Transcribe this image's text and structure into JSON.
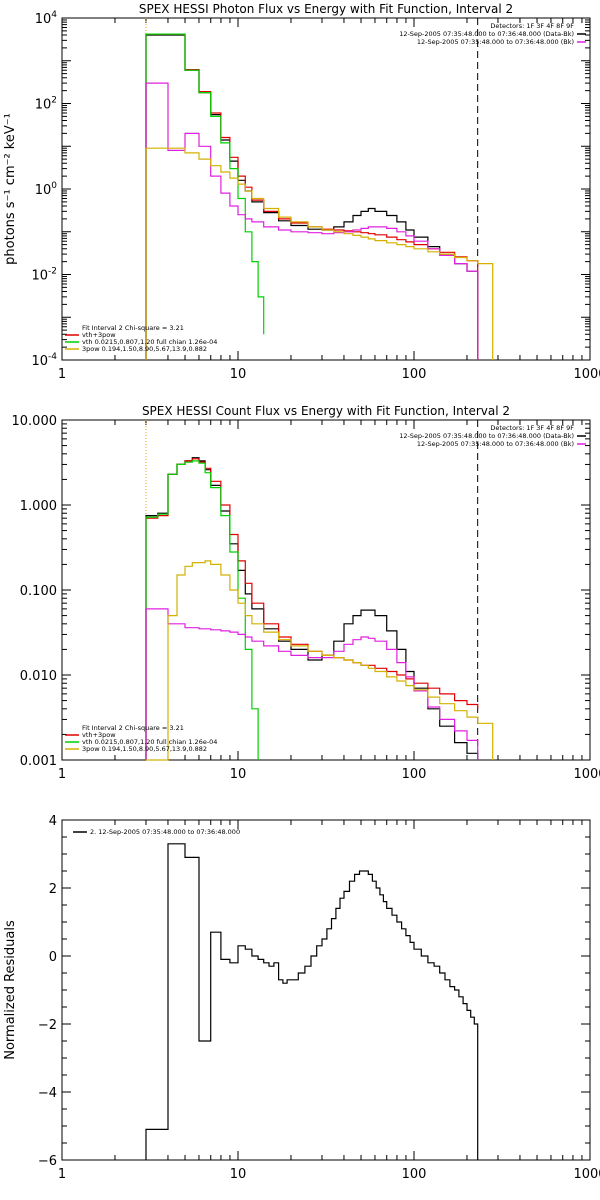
{
  "chart_data": [
    {
      "type": "line",
      "title": "SPEX HESSI Photon Flux vs Energy with Fit Function, Interval 2",
      "ylabel": "photons s⁻¹ cm⁻² keV⁻¹",
      "xlabel": "",
      "xscale": "log",
      "yscale": "log",
      "xlim": [
        1,
        1000
      ],
      "ylim": [
        0.0001,
        10000
      ],
      "xticks": [
        1,
        10,
        100,
        1000
      ],
      "xtick_labels": [
        "1",
        "10",
        "100",
        "1000"
      ],
      "yticks": [
        0.0001,
        0.01,
        1,
        100,
        10000
      ],
      "ytick_labels": [
        {
          "base": "10",
          "exp": "-4"
        },
        {
          "base": "10",
          "exp": "-2"
        },
        {
          "base": "10",
          "exp": "0"
        },
        {
          "base": "10",
          "exp": "2"
        },
        {
          "base": "10",
          "exp": "4"
        }
      ],
      "vlines": [
        {
          "x": 3,
          "color": "#f2a000",
          "dash": "dotted"
        },
        {
          "x": 230,
          "color": "#000000",
          "dash": "dashed"
        }
      ],
      "header_lines": [
        {
          "text": "Detectors: 1F 3F 4F 8F 9F",
          "swatch": ""
        },
        {
          "text": "12-Sep-2005 07:35:48.000 to 07:36:48.000 (Data-Bk)",
          "swatch": "#000000"
        },
        {
          "text": "12-Sep-2005 07:35:48.000 to 07:36:48.000 (Bk)",
          "swatch": "#e020e0"
        }
      ],
      "fit_legend": [
        {
          "text": "Fit Interval 2   Chi-square = 3.21",
          "color": ""
        },
        {
          "text": "vth+3pow",
          "color": "#e00000"
        },
        {
          "text": "vth 0.0215,0.807,1.20  full chian 1.26e-04",
          "color": "#00d000"
        },
        {
          "text": "3pow 0.194,1.50,8.90,5.67,13.9,0.882",
          "color": "#d4b000"
        }
      ],
      "series": [
        {
          "color": "#000000",
          "x": [
            3,
            4,
            5,
            6,
            7,
            8,
            9,
            10,
            11,
            12,
            14,
            17,
            20,
            25,
            30,
            35,
            40,
            45,
            50,
            55,
            60,
            70,
            80,
            90,
            100,
            120,
            140,
            170,
            200,
            230
          ],
          "values": [
            4000,
            4000,
            600,
            180,
            55,
            14,
            4.5,
            1.6,
            0.9,
            0.5,
            0.28,
            0.18,
            0.14,
            0.115,
            0.11,
            0.13,
            0.17,
            0.24,
            0.3,
            0.35,
            0.3,
            0.24,
            0.17,
            0.11,
            0.075,
            0.045,
            0.03,
            0.018,
            0.012,
            0.0001
          ]
        },
        {
          "color": "#e00000",
          "x": [
            3,
            4,
            5,
            6,
            7,
            8,
            9,
            10,
            11,
            12,
            14,
            17,
            20,
            25,
            30,
            35,
            40,
            45,
            50,
            55,
            60,
            70,
            80,
            90,
            100,
            120,
            140,
            170,
            200,
            230
          ],
          "values": [
            4200,
            4200,
            620,
            190,
            60,
            16,
            5.5,
            2.0,
            1.1,
            0.55,
            0.3,
            0.2,
            0.16,
            0.13,
            0.115,
            0.11,
            0.105,
            0.1,
            0.095,
            0.09,
            0.085,
            0.075,
            0.065,
            0.058,
            0.05,
            0.04,
            0.033,
            0.026,
            0.021,
            0.0001
          ]
        },
        {
          "color": "#00d000",
          "x": [
            3,
            4,
            5,
            6,
            7,
            8,
            9,
            10,
            11,
            12,
            13,
            14
          ],
          "values": [
            4200,
            4200,
            600,
            180,
            50,
            12,
            3,
            0.6,
            0.1,
            0.02,
            0.003,
            0.0004
          ]
        },
        {
          "color": "#e020e0",
          "x": [
            3,
            4,
            5,
            6,
            7,
            8,
            9,
            10,
            11,
            12,
            14,
            17,
            20,
            25,
            30,
            35,
            40,
            45,
            50,
            55,
            60,
            70,
            80,
            90,
            100,
            120,
            140,
            170,
            200,
            230
          ],
          "values": [
            300,
            8,
            20,
            10,
            2,
            0.8,
            0.4,
            0.25,
            0.2,
            0.17,
            0.13,
            0.11,
            0.1,
            0.095,
            0.09,
            0.095,
            0.1,
            0.11,
            0.12,
            0.13,
            0.13,
            0.12,
            0.1,
            0.08,
            0.06,
            0.04,
            0.028,
            0.018,
            0.012,
            0.0001
          ]
        },
        {
          "color": "#d4b000",
          "x": [
            3,
            4,
            5,
            6,
            7,
            8,
            9,
            10,
            11,
            12,
            14,
            17,
            20,
            25,
            30,
            35,
            40,
            45,
            50,
            55,
            60,
            70,
            80,
            90,
            100,
            120,
            140,
            170,
            200,
            230,
            280
          ],
          "values": [
            9,
            9,
            7,
            5,
            3.5,
            2.5,
            1.8,
            1.3,
            0.9,
            0.6,
            0.35,
            0.22,
            0.17,
            0.13,
            0.11,
            0.1,
            0.09,
            0.082,
            0.075,
            0.068,
            0.062,
            0.055,
            0.05,
            0.045,
            0.04,
            0.034,
            0.03,
            0.025,
            0.021,
            0.018,
            0.0001
          ]
        }
      ]
    },
    {
      "type": "line",
      "title": "SPEX HESSI Count Flux vs Energy with Fit Function, Interval 2",
      "ylabel": "",
      "xlabel": "",
      "xscale": "log",
      "yscale": "log",
      "xlim": [
        1,
        1000
      ],
      "ylim": [
        0.001,
        10
      ],
      "xticks": [
        1,
        10,
        100,
        1000
      ],
      "xtick_labels": [
        "1",
        "10",
        "100",
        "1000"
      ],
      "yticks": [
        0.001,
        0.01,
        0.1,
        1,
        10
      ],
      "ytick_labels": [
        {
          "base": "0.001",
          "exp": ""
        },
        {
          "base": "0.010",
          "exp": ""
        },
        {
          "base": "0.100",
          "exp": ""
        },
        {
          "base": "1.000",
          "exp": ""
        },
        {
          "base": "10.000",
          "exp": ""
        }
      ],
      "vlines": [
        {
          "x": 3,
          "color": "#f2a000",
          "dash": "dotted"
        },
        {
          "x": 230,
          "color": "#000000",
          "dash": "dashed"
        }
      ],
      "header_lines": [
        {
          "text": "Detectors: 1F 3F 4F 8F 9F",
          "swatch": ""
        },
        {
          "text": "12-Sep-2005 07:35:48.000 to 07:36:48.000 (Data-Bk)",
          "swatch": "#000000"
        },
        {
          "text": "12-Sep-2005 07:35:48.000 to 07:36:48.000 (Bk)",
          "swatch": "#e020e0"
        }
      ],
      "fit_legend": [
        {
          "text": "Fit Interval 2   Chi-square = 3.21",
          "color": ""
        },
        {
          "text": "vth+3pow",
          "color": "#e00000"
        },
        {
          "text": "vth 0.0215,0.807,1.20  full chian 1.26e-04",
          "color": "#00d000"
        },
        {
          "text": "3pow 0.194,1.50,8.90,5.67,13.9,0.882",
          "color": "#d4b000"
        }
      ],
      "series": [
        {
          "color": "#000000",
          "x": [
            3,
            3.5,
            4,
            4.5,
            5,
            5.5,
            6,
            6.5,
            7,
            8,
            9,
            10,
            11,
            12,
            14,
            17,
            20,
            25,
            30,
            35,
            40,
            45,
            50,
            55,
            60,
            70,
            80,
            90,
            100,
            120,
            140,
            170,
            200,
            230
          ],
          "values": [
            0.75,
            0.8,
            2.3,
            3.0,
            3.3,
            3.6,
            3.3,
            2.6,
            1.7,
            0.85,
            0.35,
            0.17,
            0.09,
            0.06,
            0.035,
            0.025,
            0.02,
            0.015,
            0.017,
            0.025,
            0.04,
            0.05,
            0.058,
            0.058,
            0.05,
            0.033,
            0.02,
            0.011,
            0.007,
            0.004,
            0.0025,
            0.0016,
            0.0012,
            0.001
          ]
        },
        {
          "color": "#e00000",
          "x": [
            3,
            3.5,
            4,
            4.5,
            5,
            5.5,
            6,
            6.5,
            7,
            8,
            9,
            10,
            11,
            12,
            14,
            17,
            20,
            25,
            30,
            35,
            40,
            45,
            50,
            55,
            60,
            70,
            80,
            90,
            100,
            120,
            140,
            170,
            200,
            230
          ],
          "values": [
            0.7,
            0.75,
            2.3,
            3.0,
            3.3,
            3.5,
            3.2,
            2.7,
            1.9,
            1.0,
            0.45,
            0.22,
            0.12,
            0.07,
            0.04,
            0.028,
            0.023,
            0.019,
            0.017,
            0.016,
            0.015,
            0.014,
            0.013,
            0.013,
            0.012,
            0.011,
            0.01,
            0.009,
            0.008,
            0.007,
            0.006,
            0.005,
            0.0045,
            0.004
          ]
        },
        {
          "color": "#00d000",
          "x": [
            3,
            3.5,
            4,
            4.5,
            5,
            5.5,
            6,
            6.5,
            7,
            8,
            9,
            10,
            11,
            12,
            13
          ],
          "values": [
            0.72,
            0.78,
            2.3,
            3.0,
            3.2,
            3.3,
            3.1,
            2.4,
            1.6,
            0.75,
            0.28,
            0.08,
            0.02,
            0.004,
            0.001
          ]
        },
        {
          "color": "#e020e0",
          "x": [
            3,
            4,
            5,
            6,
            7,
            8,
            9,
            10,
            11,
            12,
            14,
            17,
            20,
            25,
            30,
            35,
            40,
            45,
            50,
            55,
            60,
            70,
            80,
            90,
            100,
            120,
            140,
            170,
            200,
            230
          ],
          "values": [
            0.06,
            0.04,
            0.036,
            0.035,
            0.034,
            0.033,
            0.032,
            0.03,
            0.028,
            0.025,
            0.022,
            0.019,
            0.017,
            0.016,
            0.016,
            0.019,
            0.023,
            0.026,
            0.028,
            0.027,
            0.025,
            0.02,
            0.014,
            0.0095,
            0.0065,
            0.0042,
            0.003,
            0.0022,
            0.0017,
            0.001
          ]
        },
        {
          "color": "#d4b000",
          "x": [
            3,
            4,
            4.5,
            5,
            5.5,
            6,
            6.5,
            7,
            8,
            9,
            10,
            11,
            12,
            14,
            17,
            20,
            25,
            30,
            35,
            40,
            45,
            50,
            55,
            60,
            70,
            80,
            90,
            100,
            120,
            140,
            170,
            200,
            230,
            280
          ],
          "values": [
            0.001,
            0.05,
            0.15,
            0.19,
            0.21,
            0.21,
            0.22,
            0.2,
            0.15,
            0.1,
            0.07,
            0.05,
            0.04,
            0.032,
            0.026,
            0.022,
            0.019,
            0.017,
            0.016,
            0.015,
            0.014,
            0.013,
            0.012,
            0.011,
            0.0095,
            0.0085,
            0.0075,
            0.0067,
            0.0055,
            0.0046,
            0.0038,
            0.0032,
            0.0027,
            0.001
          ]
        }
      ]
    },
    {
      "type": "line",
      "title": "",
      "ylabel": "Normalized Residuals",
      "xlabel": "",
      "xscale": "log",
      "yscale": "linear",
      "xlim": [
        1,
        1000
      ],
      "ylim": [
        -6,
        4
      ],
      "xticks": [
        1,
        10,
        100,
        1000
      ],
      "xtick_labels": [
        "1",
        "10",
        "100",
        "1000"
      ],
      "yticks": [
        -6,
        -4,
        -2,
        0,
        2,
        4
      ],
      "ytick_labels": [
        {
          "base": "−6",
          "exp": ""
        },
        {
          "base": "−4",
          "exp": ""
        },
        {
          "base": "−2",
          "exp": ""
        },
        {
          "base": "0",
          "exp": ""
        },
        {
          "base": "2",
          "exp": ""
        },
        {
          "base": "4",
          "exp": ""
        }
      ],
      "vlines": [],
      "header_lines": [],
      "fit_legend": [
        {
          "text": "2. 12-Sep-2005 07:35:48.000 to 07:36:48.000",
          "color": "#000000"
        }
      ],
      "series": [
        {
          "color": "#000000",
          "x": [
            3,
            4,
            5,
            6,
            7,
            8,
            9,
            10,
            11,
            12,
            13,
            14,
            15,
            16,
            17,
            18,
            19,
            20,
            22,
            24,
            26,
            28,
            30,
            32,
            34,
            36,
            38,
            40,
            43,
            46,
            49,
            52,
            55,
            58,
            61,
            64,
            67,
            70,
            75,
            80,
            85,
            90,
            95,
            100,
            110,
            120,
            130,
            140,
            150,
            160,
            170,
            180,
            190,
            200,
            210,
            220,
            230
          ],
          "values": [
            -5.1,
            3.3,
            2.9,
            -2.5,
            0.7,
            -0.1,
            -0.2,
            0.3,
            0.2,
            0.0,
            -0.1,
            -0.2,
            -0.3,
            -0.2,
            -0.7,
            -0.8,
            -0.7,
            -0.7,
            -0.5,
            -0.3,
            0.0,
            0.3,
            0.5,
            0.8,
            1.1,
            1.4,
            1.7,
            1.9,
            2.2,
            2.4,
            2.5,
            2.5,
            2.4,
            2.2,
            2.0,
            1.8,
            1.6,
            1.4,
            1.2,
            1.0,
            0.8,
            0.6,
            0.4,
            0.2,
            0.0,
            -0.2,
            -0.3,
            -0.5,
            -0.7,
            -0.9,
            -1.0,
            -1.2,
            -1.4,
            -1.6,
            -1.8,
            -2.0,
            -6.0
          ]
        }
      ]
    }
  ]
}
